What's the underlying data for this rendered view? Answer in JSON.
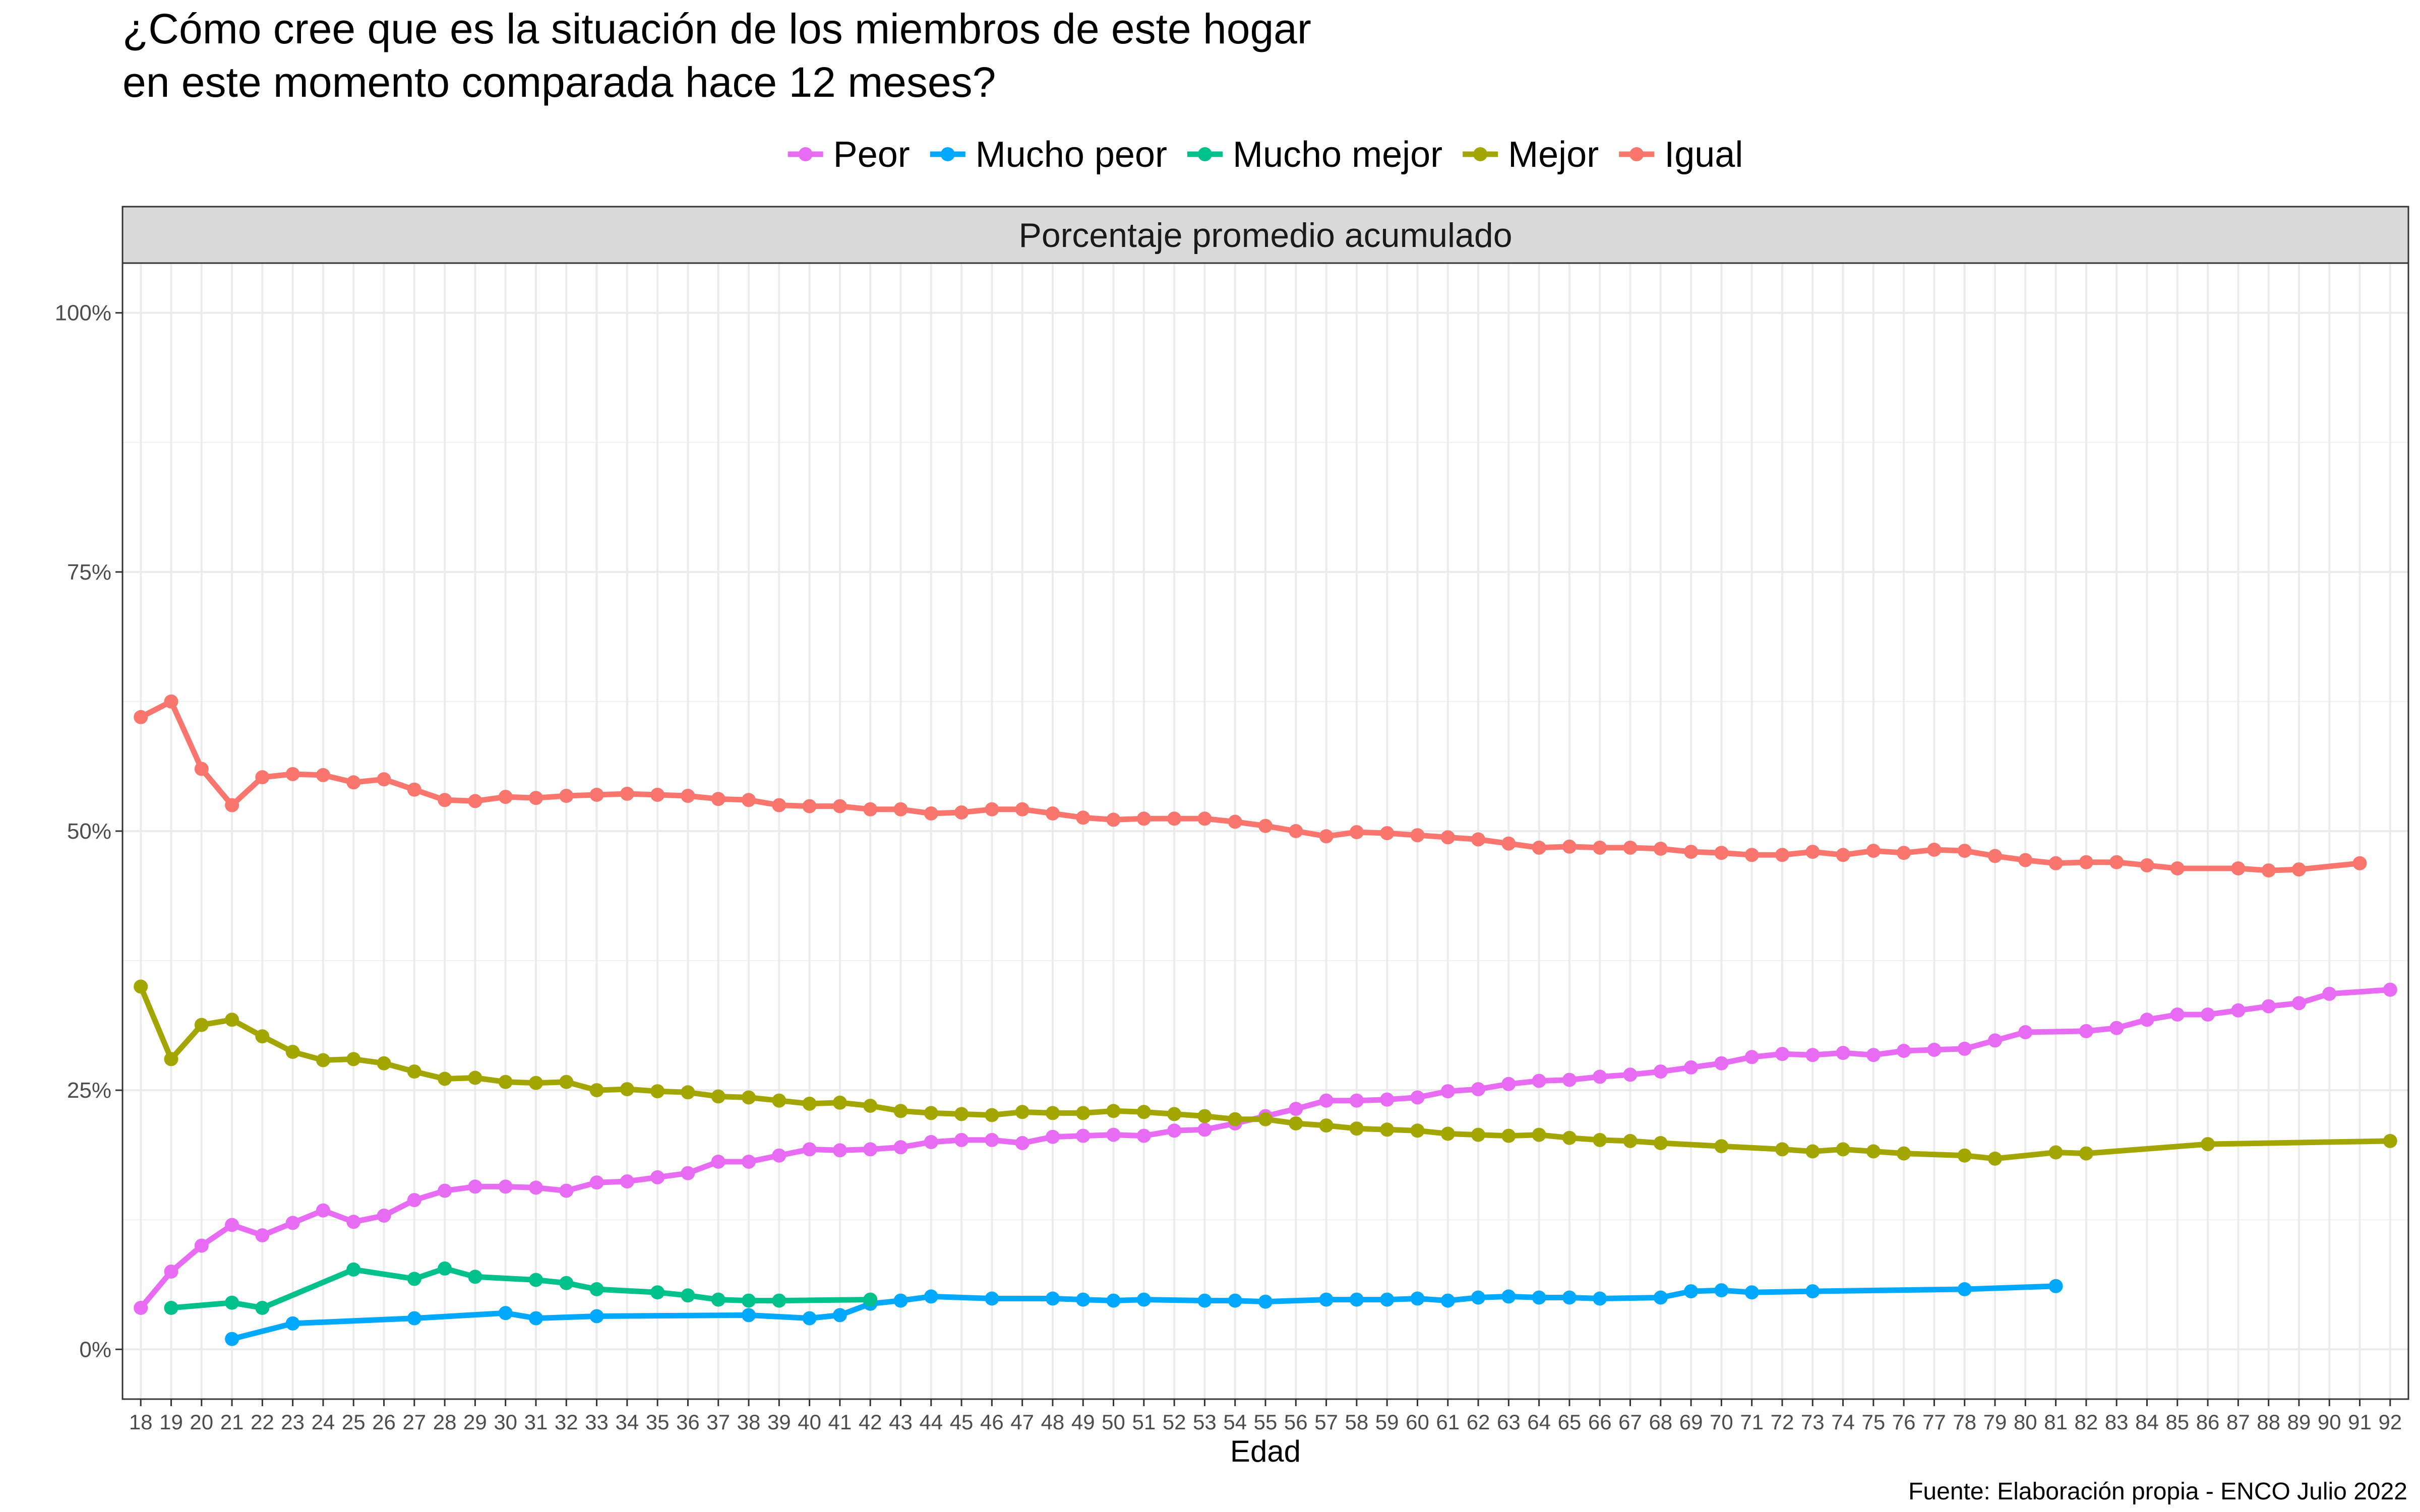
{
  "chart_data": {
    "type": "line",
    "title": "¿Cómo cree que es la situación de los miembros de este hogar en este momento comparada hace 12 meses?",
    "title_lines": [
      "¿Cómo cree que es la situación de los miembros de este hogar",
      "en este momento comparada hace 12 meses?"
    ],
    "facet_label": "Porcentaje promedio acumulado",
    "xlabel": "Edad",
    "ylabel": "",
    "caption": "Fuente: Elaboración propia - ENCO Julio 2022",
    "legend_position": "top",
    "grid": true,
    "x_ticks": [
      18,
      19,
      20,
      21,
      22,
      23,
      24,
      25,
      26,
      27,
      28,
      29,
      30,
      31,
      32,
      33,
      34,
      35,
      36,
      37,
      38,
      39,
      40,
      41,
      42,
      43,
      44,
      45,
      46,
      47,
      48,
      49,
      50,
      51,
      52,
      53,
      54,
      55,
      56,
      57,
      58,
      59,
      60,
      61,
      62,
      63,
      64,
      65,
      66,
      67,
      68,
      69,
      70,
      71,
      72,
      73,
      74,
      75,
      76,
      77,
      78,
      79,
      80,
      81,
      82,
      83,
      84,
      85,
      86,
      87,
      88,
      89,
      90,
      91,
      92
    ],
    "xlim": [
      17.4,
      92.6
    ],
    "y_ticks": [
      0,
      25,
      50,
      75,
      100
    ],
    "y_tick_labels": [
      "0%",
      "25%",
      "50%",
      "75%",
      "100%"
    ],
    "ylim": [
      -4.8,
      104.8
    ],
    "series": [
      {
        "name": "Peor",
        "color": "#e76bf3",
        "x": [
          18,
          19,
          20,
          21,
          22,
          23,
          24,
          25,
          26,
          27,
          28,
          29,
          30,
          31,
          32,
          33,
          34,
          35,
          36,
          37,
          38,
          39,
          40,
          41,
          42,
          43,
          44,
          45,
          46,
          47,
          48,
          49,
          50,
          51,
          52,
          53,
          54,
          55,
          56,
          57,
          58,
          59,
          60,
          61,
          62,
          63,
          64,
          65,
          66,
          67,
          68,
          69,
          70,
          71,
          72,
          73,
          74,
          75,
          76,
          77,
          78,
          79,
          80,
          82,
          83,
          84,
          85,
          86,
          87,
          88,
          89,
          90,
          92
        ],
        "y": [
          4.0,
          7.5,
          10.0,
          12.0,
          11.0,
          12.2,
          13.4,
          12.3,
          12.9,
          14.4,
          15.3,
          15.7,
          15.7,
          15.6,
          15.3,
          16.1,
          16.2,
          16.6,
          17.0,
          18.1,
          18.1,
          18.7,
          19.3,
          19.2,
          19.3,
          19.5,
          20.0,
          20.2,
          20.2,
          19.9,
          20.5,
          20.6,
          20.7,
          20.6,
          21.1,
          21.2,
          21.8,
          22.5,
          23.2,
          24.0,
          24.0,
          24.1,
          24.3,
          24.9,
          25.1,
          25.6,
          25.9,
          26.0,
          26.3,
          26.5,
          26.8,
          27.2,
          27.6,
          28.2,
          28.5,
          28.4,
          28.6,
          28.4,
          28.8,
          28.9,
          29.0,
          29.8,
          30.6,
          30.7,
          31.0,
          31.8,
          32.3,
          32.3,
          32.7,
          33.1,
          33.4,
          34.3,
          34.7
        ]
      },
      {
        "name": "Mucho peor",
        "color": "#00a9ff",
        "x": [
          21,
          23,
          27,
          30,
          31,
          33,
          38,
          40,
          41,
          42,
          43,
          44,
          46,
          48,
          49,
          50,
          51,
          53,
          54,
          55,
          57,
          58,
          59,
          60,
          61,
          62,
          63,
          64,
          65,
          66,
          68,
          69,
          70,
          71,
          73,
          78,
          81
        ],
        "y": [
          1.0,
          2.5,
          3.0,
          3.5,
          3.0,
          3.2,
          3.3,
          3.0,
          3.3,
          4.4,
          4.7,
          5.1,
          4.9,
          4.9,
          4.8,
          4.7,
          4.8,
          4.7,
          4.7,
          4.6,
          4.8,
          4.8,
          4.8,
          4.9,
          4.7,
          5.0,
          5.1,
          5.0,
          5.0,
          4.9,
          5.0,
          5.6,
          5.7,
          5.5,
          5.6,
          5.8,
          6.1
        ]
      },
      {
        "name": "Mucho mejor",
        "color": "#00c08b",
        "x": [
          19,
          21,
          22,
          25,
          27,
          28,
          29,
          31,
          32,
          33,
          35,
          36,
          37,
          38,
          39,
          42
        ],
        "y": [
          4.0,
          4.5,
          4.0,
          7.7,
          6.8,
          7.8,
          7.0,
          6.7,
          6.4,
          5.8,
          5.5,
          5.2,
          4.8,
          4.7,
          4.7,
          4.8
        ]
      },
      {
        "name": "Mejor",
        "color": "#a3a500",
        "x": [
          18,
          19,
          20,
          21,
          22,
          23,
          24,
          25,
          26,
          27,
          28,
          29,
          30,
          31,
          32,
          33,
          34,
          35,
          36,
          37,
          38,
          39,
          40,
          41,
          42,
          43,
          44,
          45,
          46,
          47,
          48,
          49,
          50,
          51,
          52,
          53,
          54,
          55,
          56,
          57,
          58,
          59,
          60,
          61,
          62,
          63,
          64,
          65,
          66,
          67,
          68,
          70,
          72,
          73,
          74,
          75,
          76,
          78,
          79,
          81,
          82,
          86,
          92
        ],
        "y": [
          35.0,
          28.0,
          31.3,
          31.8,
          30.2,
          28.7,
          27.9,
          28.0,
          27.6,
          26.8,
          26.1,
          26.2,
          25.8,
          25.7,
          25.8,
          25.0,
          25.1,
          24.9,
          24.8,
          24.4,
          24.3,
          24.0,
          23.7,
          23.8,
          23.5,
          23.0,
          22.8,
          22.7,
          22.6,
          22.9,
          22.8,
          22.8,
          23.0,
          22.9,
          22.7,
          22.5,
          22.2,
          22.2,
          21.8,
          21.6,
          21.3,
          21.2,
          21.1,
          20.8,
          20.7,
          20.6,
          20.7,
          20.4,
          20.2,
          20.1,
          19.9,
          19.6,
          19.3,
          19.1,
          19.3,
          19.1,
          18.9,
          18.7,
          18.4,
          19.0,
          18.9,
          19.8,
          20.1
        ]
      },
      {
        "name": "Igual",
        "color": "#f8766d",
        "x": [
          18,
          19,
          20,
          21,
          22,
          23,
          24,
          25,
          26,
          27,
          28,
          29,
          30,
          31,
          32,
          33,
          34,
          35,
          36,
          37,
          38,
          39,
          40,
          41,
          42,
          43,
          44,
          45,
          46,
          47,
          48,
          49,
          50,
          51,
          52,
          53,
          54,
          55,
          56,
          57,
          58,
          59,
          60,
          61,
          62,
          63,
          64,
          65,
          66,
          67,
          68,
          69,
          70,
          71,
          72,
          73,
          74,
          75,
          76,
          77,
          78,
          79,
          80,
          81,
          82,
          83,
          84,
          85,
          87,
          88,
          89,
          91
        ],
        "y": [
          61.0,
          62.5,
          56.0,
          52.5,
          55.2,
          55.5,
          55.4,
          54.7,
          55.0,
          54.0,
          53.0,
          52.9,
          53.3,
          53.2,
          53.4,
          53.5,
          53.6,
          53.5,
          53.4,
          53.1,
          53.0,
          52.5,
          52.4,
          52.4,
          52.1,
          52.1,
          51.7,
          51.8,
          52.1,
          52.1,
          51.7,
          51.3,
          51.1,
          51.2,
          51.2,
          51.2,
          50.9,
          50.5,
          50.0,
          49.5,
          49.9,
          49.8,
          49.6,
          49.4,
          49.2,
          48.8,
          48.4,
          48.5,
          48.4,
          48.4,
          48.3,
          48.0,
          47.9,
          47.7,
          47.7,
          48.0,
          47.7,
          48.1,
          47.9,
          48.2,
          48.1,
          47.6,
          47.2,
          46.9,
          47.0,
          47.0,
          46.7,
          46.4,
          46.4,
          46.2,
          46.3,
          46.9
        ]
      }
    ]
  }
}
